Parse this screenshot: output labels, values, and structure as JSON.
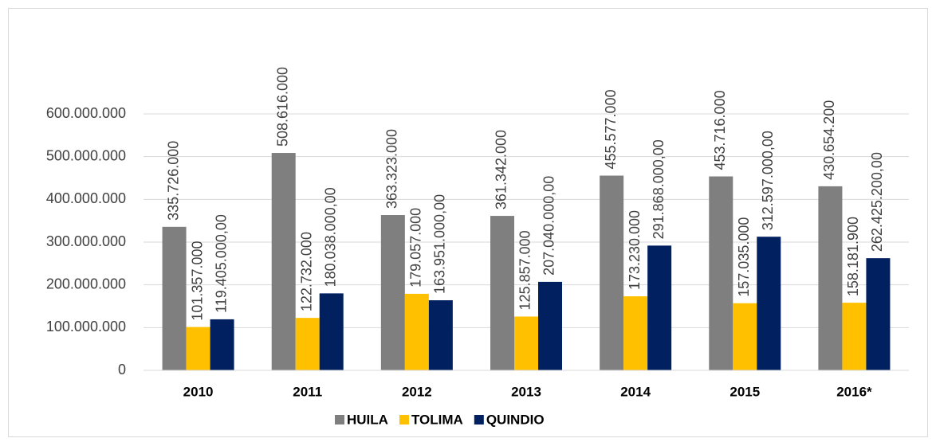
{
  "chart_data": {
    "type": "bar",
    "categories": [
      "2010",
      "2011",
      "2012",
      "2013",
      "2014",
      "2015",
      "2016*"
    ],
    "series": [
      {
        "name": "HUILA",
        "color": "#7f7f7f",
        "values": [
          335726000,
          508616000,
          363323000,
          361342000,
          455577000,
          453716000,
          430654200
        ],
        "value_labels": [
          "335.726.000",
          "508.616.000",
          "363.323.000",
          "361.342.000",
          "455.577.000",
          "453.716.000",
          "430.654.200"
        ]
      },
      {
        "name": "TOLIMA",
        "color": "#ffc000",
        "values": [
          101357000,
          122732000,
          179057000,
          125857000,
          173230000,
          157035000,
          158181900
        ],
        "value_labels": [
          "101.357.000",
          "122.732.000",
          "179.057.000",
          "125.857.000",
          "173.230.000",
          "157.035.000",
          "158.181.900"
        ]
      },
      {
        "name": "QUINDIO",
        "color": "#002060",
        "values": [
          119405000,
          180038000,
          163951000,
          207040000,
          291868000,
          312597000,
          262425200
        ],
        "value_labels": [
          "119.405.000,00",
          "180.038.000,00",
          "163.951.000,00",
          "207.040.000,00",
          "291.868.000,00",
          "312.597.000,00",
          "262.425.200,00"
        ]
      }
    ],
    "ylim": [
      0,
      600000000
    ],
    "yticks": [
      0,
      {
        "value": 100000000,
        "label": "100.000.000"
      },
      {
        "value": 200000000,
        "label": "200.000.000"
      },
      {
        "value": 300000000,
        "label": "300.000.000"
      },
      {
        "value": 400000000,
        "label": "400.000.000"
      },
      {
        "value": 500000000,
        "label": "500.000.000"
      },
      {
        "value": 600000000,
        "label": "600.000.000"
      }
    ],
    "grid": true,
    "legend": "bottom"
  }
}
